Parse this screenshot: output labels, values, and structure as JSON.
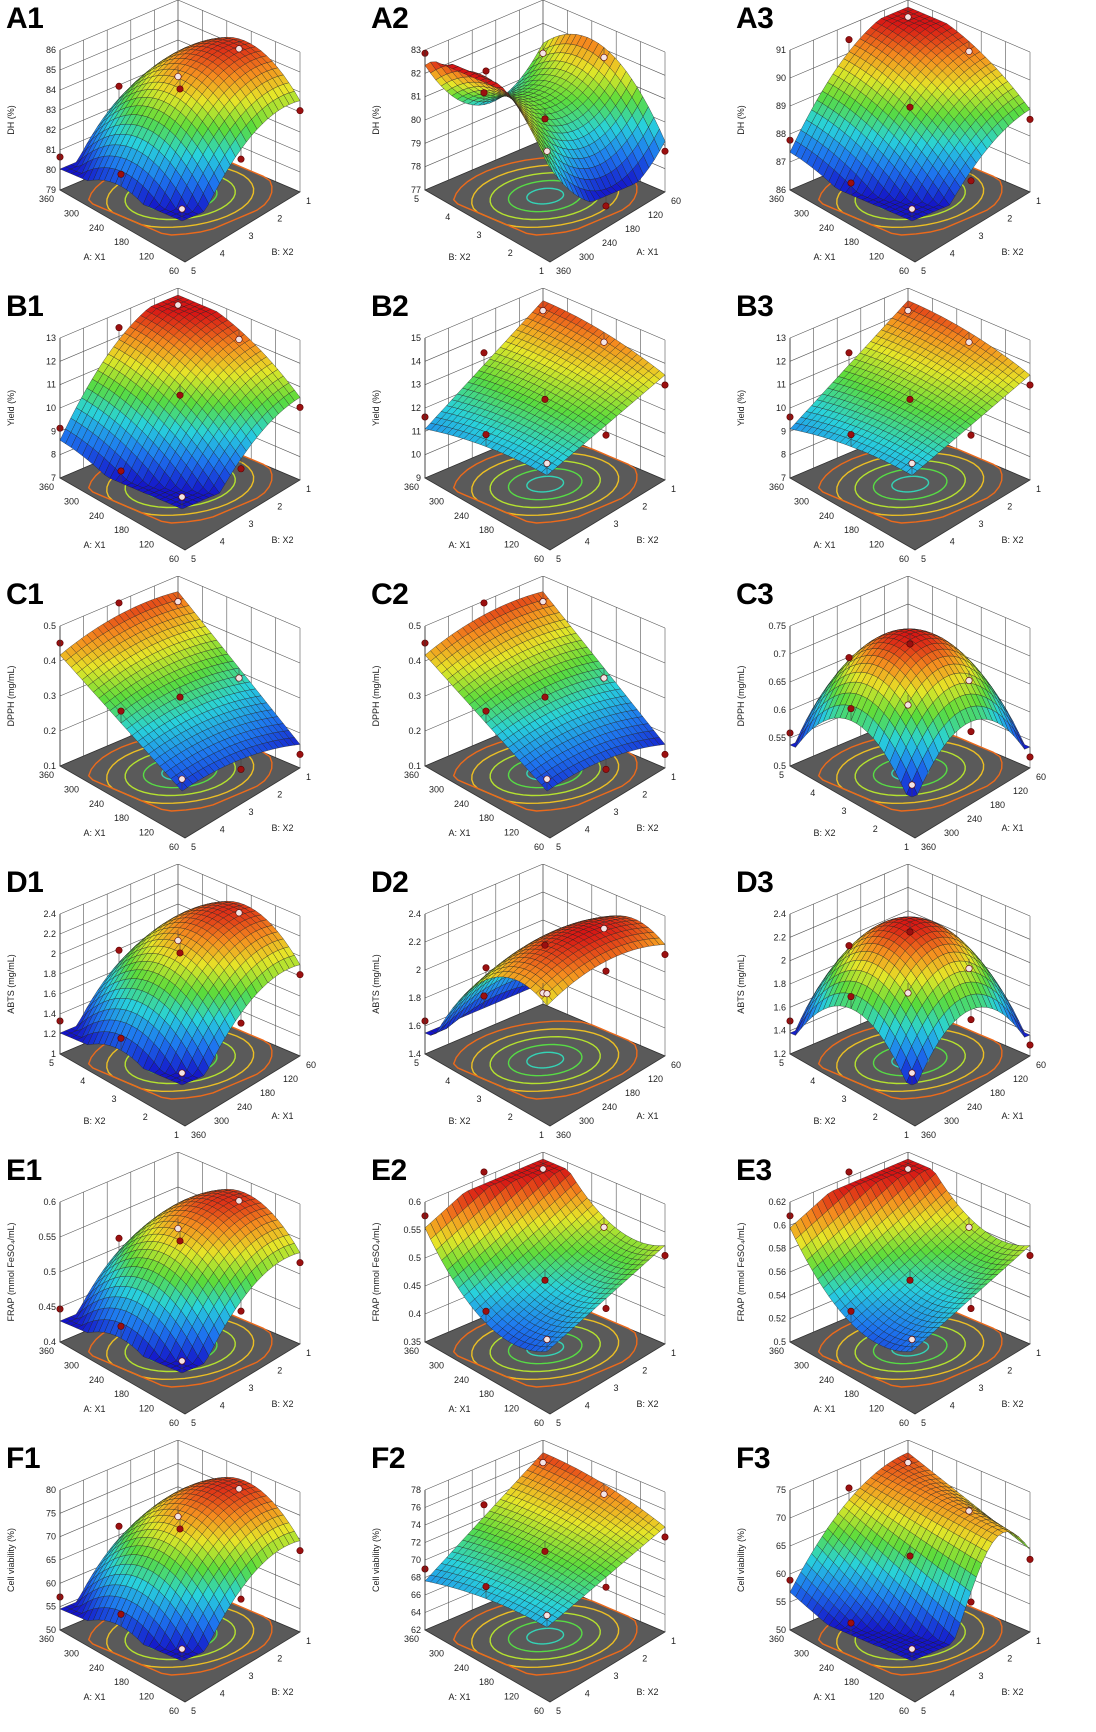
{
  "chart_data": [
    {
      "id": "A1",
      "type": "surface3d",
      "zlabel": "DH (%)",
      "zticks": [
        "79",
        "80",
        "81",
        "82",
        "83",
        "84",
        "85",
        "86"
      ],
      "zlim": [
        79,
        86
      ],
      "xlabel": "A: X1",
      "xticks": [
        "60",
        "120",
        "180",
        "240",
        "300",
        "360"
      ],
      "ylabel": "B: X2",
      "yticks": [
        "1",
        "2",
        "3",
        "4",
        "5"
      ],
      "orient": "A",
      "fn": "dome1"
    },
    {
      "id": "A2",
      "type": "surface3d",
      "zlabel": "DH (%)",
      "zticks": [
        "77",
        "78",
        "79",
        "80",
        "81",
        "82",
        "83"
      ],
      "zlim": [
        77,
        83
      ],
      "xlabel": "B: X2",
      "xticks": [
        "1",
        "2",
        "3",
        "4",
        "5"
      ],
      "ylabel": "A: X1",
      "yticks": [
        "60",
        "120",
        "180",
        "240",
        "300",
        "360"
      ],
      "orient": "B",
      "fn": "saddle"
    },
    {
      "id": "A3",
      "type": "surface3d",
      "zlabel": "DH (%)",
      "zticks": [
        "86",
        "87",
        "88",
        "89",
        "90",
        "91"
      ],
      "zlim": [
        86,
        91
      ],
      "xlabel": "A: X1",
      "xticks": [
        "60",
        "120",
        "180",
        "240",
        "300",
        "360"
      ],
      "ylabel": "B: X2",
      "yticks": [
        "1",
        "2",
        "3",
        "4",
        "5"
      ],
      "orient": "A",
      "fn": "slopeHigh"
    },
    {
      "id": "B1",
      "type": "surface3d",
      "zlabel": "Yield (%)",
      "zticks": [
        "7",
        "8",
        "9",
        "10",
        "11",
        "12",
        "13"
      ],
      "zlim": [
        7,
        13
      ],
      "xlabel": "A: X1",
      "xticks": [
        "60",
        "120",
        "180",
        "240",
        "300",
        "360"
      ],
      "ylabel": "B: X2",
      "yticks": [
        "1",
        "2",
        "3",
        "4",
        "5"
      ],
      "orient": "A",
      "fn": "slopeHigh"
    },
    {
      "id": "B2",
      "type": "surface3d",
      "zlabel": "Yield (%)",
      "zticks": [
        "9",
        "10",
        "11",
        "12",
        "13",
        "14",
        "15"
      ],
      "zlim": [
        9,
        15
      ],
      "xlabel": "A: X1",
      "xticks": [
        "60",
        "120",
        "180",
        "240",
        "300",
        "360"
      ],
      "ylabel": "B: X2",
      "yticks": [
        "1",
        "2",
        "3",
        "4",
        "5"
      ],
      "orient": "A",
      "fn": "slopeMid"
    },
    {
      "id": "B3",
      "type": "surface3d",
      "zlabel": "Yield (%)",
      "zticks": [
        "7",
        "8",
        "9",
        "10",
        "11",
        "12",
        "13"
      ],
      "zlim": [
        7,
        13
      ],
      "xlabel": "A: X1",
      "xticks": [
        "60",
        "120",
        "180",
        "240",
        "300",
        "360"
      ],
      "ylabel": "B: X2",
      "yticks": [
        "1",
        "2",
        "3",
        "4",
        "5"
      ],
      "orient": "A",
      "fn": "slopeMid"
    },
    {
      "id": "C1",
      "type": "surface3d",
      "zlabel": "DPPH (mg/mL)",
      "zticks": [
        "0.1",
        "0.2",
        "0.3",
        "0.4",
        "0.5"
      ],
      "zlim": [
        0.05,
        0.5
      ],
      "xlabel": "A: X1",
      "xticks": [
        "60",
        "120",
        "180",
        "240",
        "300",
        "360"
      ],
      "ylabel": "B: X2",
      "yticks": [
        "1",
        "2",
        "3",
        "4",
        "5"
      ],
      "orient": "A",
      "fn": "ramp"
    },
    {
      "id": "C2",
      "type": "surface3d",
      "zlabel": "DPPH (mg/mL)",
      "zticks": [
        "0.1",
        "0.2",
        "0.3",
        "0.4",
        "0.5"
      ],
      "zlim": [
        0.05,
        0.5
      ],
      "xlabel": "A: X1",
      "xticks": [
        "60",
        "120",
        "180",
        "240",
        "300",
        "360"
      ],
      "ylabel": "B: X2",
      "yticks": [
        "1",
        "2",
        "3",
        "4",
        "5"
      ],
      "orient": "A",
      "fn": "ramp"
    },
    {
      "id": "C3",
      "type": "surface3d",
      "zlabel": "DPPH (mg/mL)",
      "zticks": [
        "0.5",
        "0.55",
        "0.6",
        "0.65",
        "0.7",
        "0.75"
      ],
      "zlim": [
        0.5,
        0.75
      ],
      "xlabel": "B: X2",
      "xticks": [
        "1",
        "2",
        "3",
        "4",
        "5"
      ],
      "ylabel": "A: X1",
      "yticks": [
        "60",
        "120",
        "180",
        "240",
        "300",
        "360"
      ],
      "orient": "C",
      "fn": "dome2"
    },
    {
      "id": "D1",
      "type": "surface3d",
      "zlabel": "ABTS (mg/mL)",
      "zticks": [
        "1",
        "1.2",
        "1.4",
        "1.6",
        "1.8",
        "2",
        "2.2",
        "2.4"
      ],
      "zlim": [
        0.9,
        2.4
      ],
      "xlabel": "B: X2",
      "xticks": [
        "1",
        "2",
        "3",
        "4",
        "5"
      ],
      "ylabel": "A: X1",
      "yticks": [
        "60",
        "120",
        "180",
        "240",
        "300",
        "360"
      ],
      "orient": "B",
      "fn": "dome1"
    },
    {
      "id": "D2",
      "type": "surface3d",
      "zlabel": "ABTS (mg/mL)",
      "zticks": [
        "1.4",
        "1.6",
        "1.8",
        "2",
        "2.2",
        "2.4"
      ],
      "zlim": [
        1.3,
        2.4
      ],
      "xlabel": "B: X2",
      "xticks": [
        "1",
        "2",
        "3",
        "4",
        "5"
      ],
      "ylabel": "A: X1",
      "yticks": [
        "60",
        "120",
        "180",
        "240",
        "300",
        "360"
      ],
      "orient": "B",
      "fn": "plateau"
    },
    {
      "id": "D3",
      "type": "surface3d",
      "zlabel": "ABTS (mg/mL)",
      "zticks": [
        "1.2",
        "1.4",
        "1.6",
        "1.8",
        "2",
        "2.2",
        "2.4"
      ],
      "zlim": [
        1.1,
        2.4
      ],
      "xlabel": "B: X2",
      "xticks": [
        "1",
        "2",
        "3",
        "4",
        "5"
      ],
      "ylabel": "A: X1",
      "yticks": [
        "60",
        "120",
        "180",
        "240",
        "300",
        "360"
      ],
      "orient": "B",
      "fn": "dome2"
    },
    {
      "id": "E1",
      "type": "surface3d",
      "zlabel": "FRAP (mmol FeSO₄/mL)",
      "zticks": [
        "0.4",
        "0.45",
        "0.5",
        "0.55",
        "0.6"
      ],
      "zlim": [
        0.38,
        0.6
      ],
      "xlabel": "A: X1",
      "xticks": [
        "60",
        "120",
        "180",
        "240",
        "300",
        "360"
      ],
      "ylabel": "B: X2",
      "yticks": [
        "1",
        "2",
        "3",
        "4",
        "5"
      ],
      "orient": "A",
      "fn": "dome1"
    },
    {
      "id": "E2",
      "type": "surface3d",
      "zlabel": "FRAP (mmol FeSO₄/mL)",
      "zticks": [
        "0.35",
        "0.4",
        "0.45",
        "0.5",
        "0.55",
        "0.6"
      ],
      "zlim": [
        0.35,
        0.6
      ],
      "xlabel": "A: X1",
      "xticks": [
        "60",
        "120",
        "180",
        "240",
        "300",
        "360"
      ],
      "ylabel": "B: X2",
      "yticks": [
        "1",
        "2",
        "3",
        "4",
        "5"
      ],
      "orient": "D",
      "fn": "valley"
    },
    {
      "id": "E3",
      "type": "surface3d",
      "zlabel": "FRAP (mmol FeSO₄/mL)",
      "zticks": [
        "0.5",
        "0.52",
        "0.54",
        "0.56",
        "0.58",
        "0.6",
        "0.62"
      ],
      "zlim": [
        0.5,
        0.62
      ],
      "xlabel": "A: X1",
      "xticks": [
        "60",
        "120",
        "180",
        "240",
        "300",
        "360"
      ],
      "ylabel": "B: X2",
      "yticks": [
        "1",
        "2",
        "3",
        "4",
        "5"
      ],
      "orient": "D",
      "fn": "valley"
    },
    {
      "id": "F1",
      "type": "surface3d",
      "zlabel": "Cell viability (%)",
      "zticks": [
        "50",
        "55",
        "60",
        "65",
        "70",
        "75",
        "80"
      ],
      "zlim": [
        50,
        80
      ],
      "xlabel": "A: X1",
      "xticks": [
        "60",
        "120",
        "180",
        "240",
        "300",
        "360"
      ],
      "ylabel": "B: X2",
      "yticks": [
        "1",
        "2",
        "3",
        "4",
        "5"
      ],
      "orient": "A",
      "fn": "dome1"
    },
    {
      "id": "F2",
      "type": "surface3d",
      "zlabel": "Cell viability (%)",
      "zticks": [
        "62",
        "64",
        "66",
        "68",
        "70",
        "72",
        "74",
        "76",
        "78"
      ],
      "zlim": [
        62,
        78
      ],
      "xlabel": "A: X1",
      "xticks": [
        "60",
        "120",
        "180",
        "240",
        "300",
        "360"
      ],
      "ylabel": "B: X2",
      "yticks": [
        "1",
        "2",
        "3",
        "4",
        "5"
      ],
      "orient": "A",
      "fn": "slopeMid"
    },
    {
      "id": "F3",
      "type": "surface3d",
      "zlabel": "Cell viability (%)",
      "zticks": [
        "50",
        "55",
        "60",
        "65",
        "70",
        "75"
      ],
      "zlim": [
        50,
        75
      ],
      "xlabel": "A: X1",
      "xticks": [
        "60",
        "120",
        "180",
        "240",
        "300",
        "360"
      ],
      "ylabel": "B: X2",
      "yticks": [
        "1",
        "2",
        "3",
        "4",
        "5"
      ],
      "orient": "A",
      "fn": "wave"
    }
  ]
}
